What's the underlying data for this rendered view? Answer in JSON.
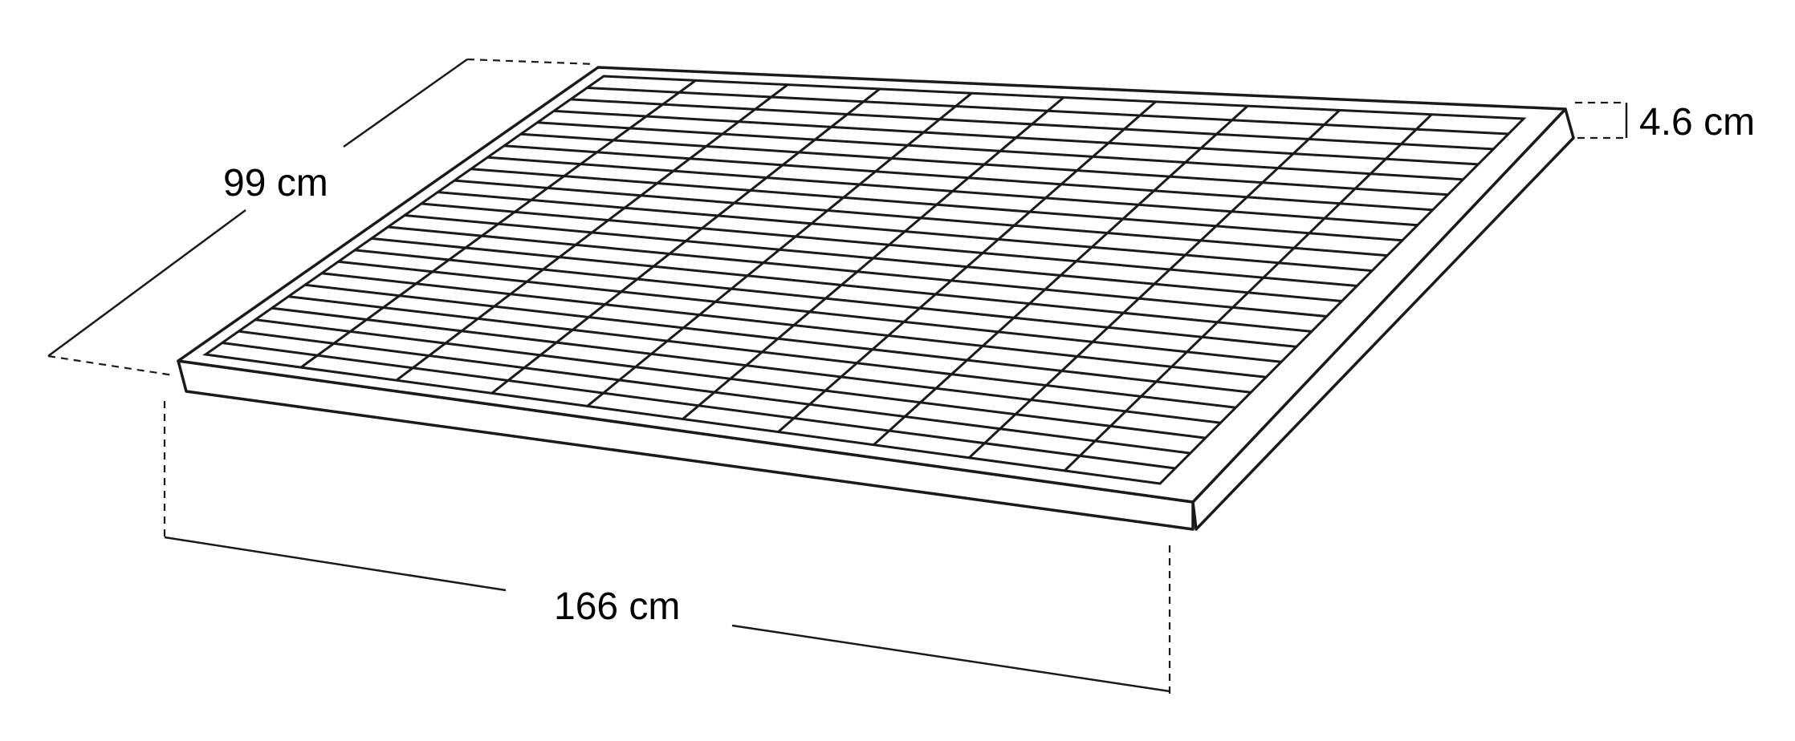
{
  "panel": {
    "rows": 24,
    "columns": 10
  },
  "dimensions": {
    "width_label": "99 cm",
    "length_label": "166 cm",
    "thickness_label": "4.6 cm"
  }
}
